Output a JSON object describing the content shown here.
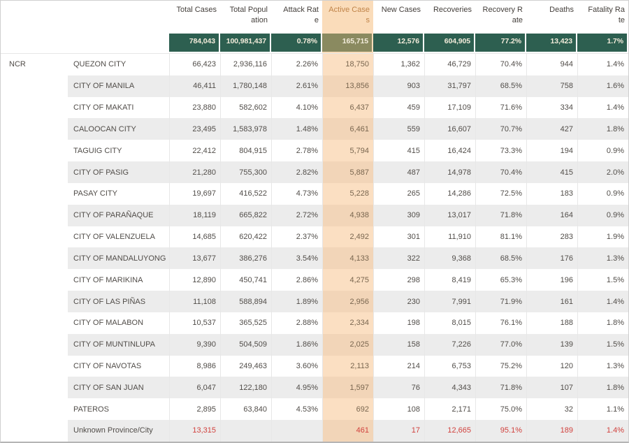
{
  "chart_data": {
    "type": "table",
    "region_label": "NCR",
    "highlighted_column": "Active Cases",
    "highlighted_column_index": 3,
    "columns": [
      "Total Cases",
      "Total Population",
      "Attack Rate",
      "Active Cases",
      "New Cases",
      "Recoveries",
      "Recovery Rate",
      "Deaths",
      "Fatality Rate"
    ],
    "column_header_display": [
      "Total Cases",
      "Total Popul\nation",
      "Attack Rat\ne",
      "Active Case\ns",
      "New Cases",
      "Recoveries",
      "Recovery R\nate",
      "Deaths",
      "Fatality Ra\nte"
    ],
    "totals": [
      "784,043",
      "100,981,437",
      "0.78%",
      "165,715",
      "12,576",
      "604,905",
      "77.2%",
      "13,423",
      "1.7%"
    ],
    "rows": [
      {
        "city": "QUEZON CITY",
        "red": false,
        "values": [
          "66,423",
          "2,936,116",
          "2.26%",
          "18,750",
          "1,362",
          "46,729",
          "70.4%",
          "944",
          "1.4%"
        ]
      },
      {
        "city": "CITY OF MANILA",
        "red": false,
        "values": [
          "46,411",
          "1,780,148",
          "2.61%",
          "13,856",
          "903",
          "31,797",
          "68.5%",
          "758",
          "1.6%"
        ]
      },
      {
        "city": "CITY OF MAKATI",
        "red": false,
        "values": [
          "23,880",
          "582,602",
          "4.10%",
          "6,437",
          "459",
          "17,109",
          "71.6%",
          "334",
          "1.4%"
        ]
      },
      {
        "city": "CALOOCAN CITY",
        "red": false,
        "values": [
          "23,495",
          "1,583,978",
          "1.48%",
          "6,461",
          "559",
          "16,607",
          "70.7%",
          "427",
          "1.8%"
        ]
      },
      {
        "city": "TAGUIG CITY",
        "red": false,
        "values": [
          "22,412",
          "804,915",
          "2.78%",
          "5,794",
          "415",
          "16,424",
          "73.3%",
          "194",
          "0.9%"
        ]
      },
      {
        "city": "CITY OF PASIG",
        "red": false,
        "values": [
          "21,280",
          "755,300",
          "2.82%",
          "5,887",
          "487",
          "14,978",
          "70.4%",
          "415",
          "2.0%"
        ]
      },
      {
        "city": "PASAY CITY",
        "red": false,
        "values": [
          "19,697",
          "416,522",
          "4.73%",
          "5,228",
          "265",
          "14,286",
          "72.5%",
          "183",
          "0.9%"
        ]
      },
      {
        "city": "CITY OF PARAÑAQUE",
        "red": false,
        "values": [
          "18,119",
          "665,822",
          "2.72%",
          "4,938",
          "309",
          "13,017",
          "71.8%",
          "164",
          "0.9%"
        ]
      },
      {
        "city": "CITY OF VALENZUELA",
        "red": false,
        "values": [
          "14,685",
          "620,422",
          "2.37%",
          "2,492",
          "301",
          "11,910",
          "81.1%",
          "283",
          "1.9%"
        ]
      },
      {
        "city": "CITY OF MANDALUYONG",
        "red": false,
        "values": [
          "13,677",
          "386,276",
          "3.54%",
          "4,133",
          "322",
          "9,368",
          "68.5%",
          "176",
          "1.3%"
        ]
      },
      {
        "city": "CITY OF MARIKINA",
        "red": false,
        "values": [
          "12,890",
          "450,741",
          "2.86%",
          "4,275",
          "298",
          "8,419",
          "65.3%",
          "196",
          "1.5%"
        ]
      },
      {
        "city": "CITY OF LAS PIÑAS",
        "red": false,
        "values": [
          "11,108",
          "588,894",
          "1.89%",
          "2,956",
          "230",
          "7,991",
          "71.9%",
          "161",
          "1.4%"
        ]
      },
      {
        "city": "CITY OF MALABON",
        "red": false,
        "values": [
          "10,537",
          "365,525",
          "2.88%",
          "2,334",
          "198",
          "8,015",
          "76.1%",
          "188",
          "1.8%"
        ]
      },
      {
        "city": "CITY OF MUNTINLUPA",
        "red": false,
        "values": [
          "9,390",
          "504,509",
          "1.86%",
          "2,025",
          "158",
          "7,226",
          "77.0%",
          "139",
          "1.5%"
        ]
      },
      {
        "city": "CITY OF NAVOTAS",
        "red": false,
        "values": [
          "8,986",
          "249,463",
          "3.60%",
          "2,113",
          "214",
          "6,753",
          "75.2%",
          "120",
          "1.3%"
        ]
      },
      {
        "city": "CITY OF SAN JUAN",
        "red": false,
        "values": [
          "6,047",
          "122,180",
          "4.95%",
          "1,597",
          "76",
          "4,343",
          "71.8%",
          "107",
          "1.8%"
        ]
      },
      {
        "city": "PATEROS",
        "red": false,
        "values": [
          "2,895",
          "63,840",
          "4.53%",
          "692",
          "108",
          "2,171",
          "75.0%",
          "32",
          "1.1%"
        ]
      },
      {
        "city": "Unknown Province/City",
        "red": true,
        "values": [
          "13,315",
          "",
          "",
          "461",
          "17",
          "12,665",
          "95.1%",
          "189",
          "1.4%"
        ]
      }
    ],
    "colors": {
      "totals_bg": "#2d5f50",
      "totals_active_bg": "#8a8a60",
      "totals_text": "#f3ecdb",
      "active_band_header": "#fadcba",
      "active_band_light": "#fbdfc2",
      "active_band_dark": "#f2d5b8",
      "row_band": "#ececec",
      "red_text": "#d1413d",
      "body_text": "#514d49",
      "header_text": "#443f3b",
      "active_header_text": "#c08449",
      "gridline": "#e7e7e7"
    }
  }
}
